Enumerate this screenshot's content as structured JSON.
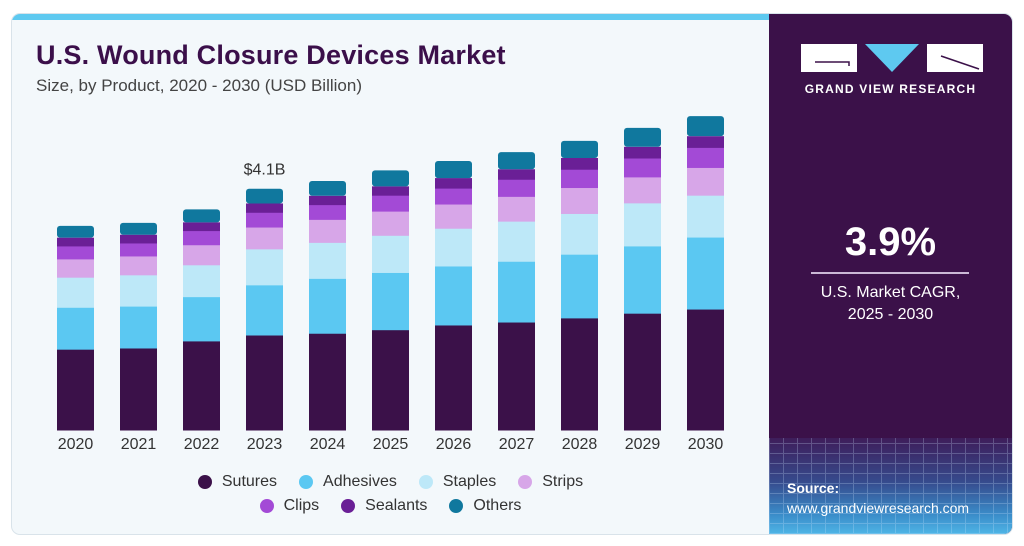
{
  "header": {
    "title": "U.S. Wound Closure Devices Market",
    "subtitle": "Size, by Product, 2020 - 2030 (USD Billion)"
  },
  "brand": {
    "name": "GRAND VIEW RESEARCH",
    "logo_icon": "gvr-logo-icon"
  },
  "highlight": {
    "value": "3.9%",
    "label_line1": "U.S. Market CAGR,",
    "label_line2": "2025 - 2030"
  },
  "source": {
    "label": "Source:",
    "url": "www.grandviewresearch.com"
  },
  "colors": {
    "accent": "#5ec9f0",
    "panel": "#3b1149"
  },
  "chart_data": {
    "type": "bar",
    "stacked": true,
    "title": "U.S. Wound Closure Devices Market",
    "subtitle": "Size, by Product, 2020 - 2030 (USD Billion)",
    "xlabel": "",
    "ylabel": "",
    "grid": false,
    "legend_position": "bottom",
    "ylim": [
      0,
      7.0
    ],
    "categories": [
      "2020",
      "2021",
      "2022",
      "2023",
      "2024",
      "2025",
      "2026",
      "2027",
      "2028",
      "2029",
      "2030"
    ],
    "annotations": [
      {
        "category": "2023",
        "text": "$4.1B"
      }
    ],
    "series": [
      {
        "name": "Sutures",
        "color": "#3b1149",
        "values": [
          1.37,
          1.39,
          1.51,
          1.61,
          1.64,
          1.7,
          1.78,
          1.83,
          1.9,
          1.98,
          2.05
        ]
      },
      {
        "name": "Adhesives",
        "color": "#5bc8f2",
        "values": [
          0.71,
          0.71,
          0.75,
          0.85,
          0.93,
          0.97,
          1.0,
          1.03,
          1.08,
          1.14,
          1.22
        ]
      },
      {
        "name": "Staples",
        "color": "#bde8f8",
        "values": [
          0.51,
          0.53,
          0.54,
          0.61,
          0.61,
          0.63,
          0.64,
          0.68,
          0.69,
          0.73,
          0.71
        ]
      },
      {
        "name": "Strips",
        "color": "#d7a6e8",
        "values": [
          0.31,
          0.32,
          0.34,
          0.37,
          0.39,
          0.41,
          0.41,
          0.42,
          0.44,
          0.44,
          0.47
        ]
      },
      {
        "name": "Clips",
        "color": "#a34ad6",
        "values": [
          0.22,
          0.22,
          0.24,
          0.25,
          0.25,
          0.27,
          0.27,
          0.29,
          0.31,
          0.32,
          0.34
        ]
      },
      {
        "name": "Sealants",
        "color": "#6a1f96",
        "values": [
          0.14,
          0.14,
          0.14,
          0.15,
          0.15,
          0.15,
          0.17,
          0.17,
          0.19,
          0.19,
          0.19
        ]
      },
      {
        "name": "Others",
        "color": "#10789e",
        "values": [
          0.2,
          0.2,
          0.22,
          0.25,
          0.25,
          0.27,
          0.29,
          0.29,
          0.29,
          0.32,
          0.34
        ]
      }
    ],
    "legend_rows": [
      [
        "Sutures",
        "Adhesives",
        "Staples",
        "Strips"
      ],
      [
        "Clips",
        "Sealants",
        "Others"
      ]
    ]
  }
}
